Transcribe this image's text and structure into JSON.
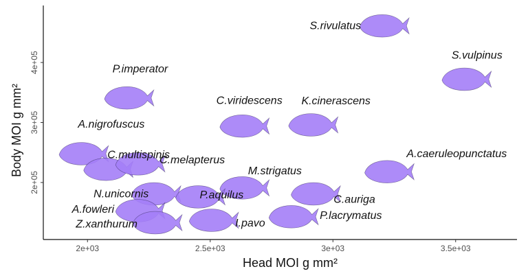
{
  "chart_data": {
    "type": "scatter",
    "title": "",
    "xlabel": "Head MOI g mm²",
    "ylabel": "Body MOI g mm²",
    "xlim": [
      1820,
      3750
    ],
    "ylim": [
      105000,
      495000
    ],
    "x_ticks": [
      2000,
      2500,
      3000,
      3500
    ],
    "x_tick_labels": [
      "2e+03",
      "2.5e+03",
      "3e+03",
      "3.5e+03"
    ],
    "y_ticks": [
      200000,
      300000,
      400000
    ],
    "y_tick_labels": [
      "2e+05",
      "3e+05",
      "4e+05"
    ],
    "grid": false,
    "marker_color": "#a47ef7",
    "marker_shape": "fish-silhouette",
    "points": [
      {
        "species": "S.rivulatus",
        "x": 3210,
        "y": 461000
      },
      {
        "species": "S.vulpinus",
        "x": 3545,
        "y": 372000
      },
      {
        "species": "P.imperator",
        "x": 2170,
        "y": 341000
      },
      {
        "species": "C.viridescens",
        "x": 2640,
        "y": 294000
      },
      {
        "species": "K.cinerascens",
        "x": 2920,
        "y": 296000
      },
      {
        "species": "A.nigrofuscus",
        "x": 1985,
        "y": 248000
      },
      {
        "species": "C.multispinis",
        "x": 2085,
        "y": 222000
      },
      {
        "species": "C.melapterus",
        "x": 2215,
        "y": 231000
      },
      {
        "species": "A.caeruleopunctatus",
        "x": 3230,
        "y": 218000
      },
      {
        "species": "M.strigatus",
        "x": 2640,
        "y": 191000
      },
      {
        "species": "N.unicornis",
        "x": 2280,
        "y": 181000
      },
      {
        "species": "C.auriga",
        "x": 2930,
        "y": 181000
      },
      {
        "species": "A.fowleri",
        "x": 2215,
        "y": 153000
      },
      {
        "species": "P.aquilus",
        "x": 2460,
        "y": 176000
      },
      {
        "species": "Z.xanthurum",
        "x": 2285,
        "y": 133000
      },
      {
        "species": "I.pavo",
        "x": 2515,
        "y": 137000
      },
      {
        "species": "P.lacrymatus",
        "x": 2840,
        "y": 143000
      }
    ]
  }
}
